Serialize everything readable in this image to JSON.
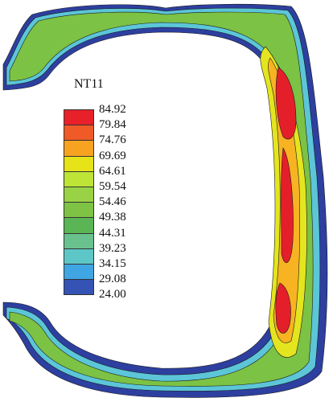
{
  "legend": {
    "title": "NT11",
    "values": [
      "84.92",
      "79.84",
      "74.76",
      "69.69",
      "64.61",
      "59.54",
      "54.46",
      "49.38",
      "44.31",
      "39.23",
      "34.15",
      "29.08",
      "24.00"
    ],
    "colors": [
      "#e8202a",
      "#ef5a27",
      "#f7a321",
      "#e6e318",
      "#bde437",
      "#99d245",
      "#7fc345",
      "#5ab654",
      "#69c28d",
      "#5dc7c8",
      "#3fa6e3",
      "#3453b4",
      "#2d44a6"
    ]
  },
  "contour": {
    "outer_color": "#2d3f9f",
    "level_colors": [
      "#4a74c9",
      "#5cc6d8",
      "#6bc58c",
      "#7cc244",
      "#a6d63c",
      "#e4e51e",
      "#f7b322",
      "#f6692a",
      "#e51f2a"
    ]
  }
}
